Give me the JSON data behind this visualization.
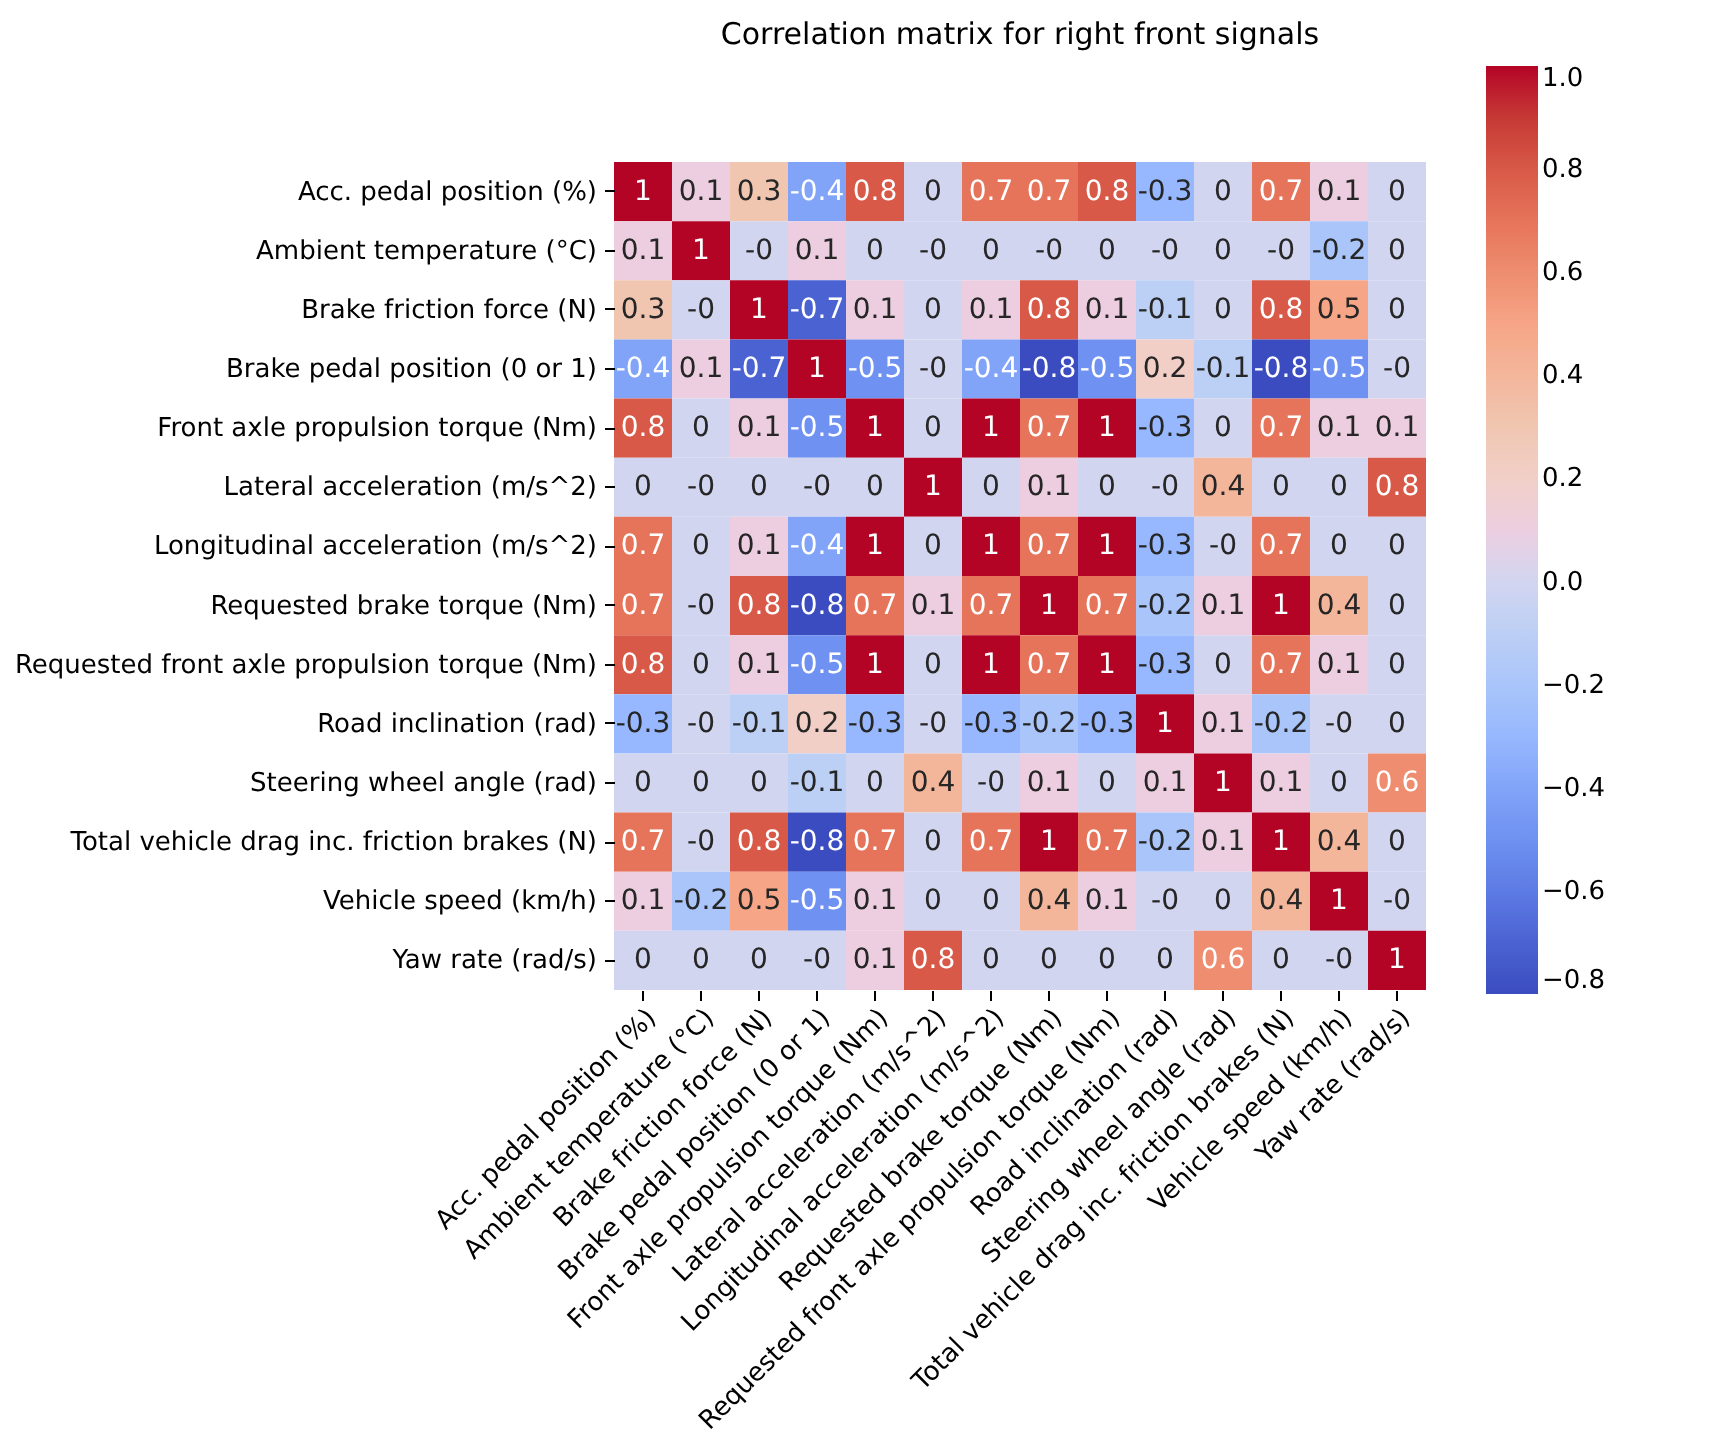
{
  "chart_data": {
    "type": "heatmap",
    "title": "Correlation matrix for right front signals",
    "categories": [
      "Acc. pedal position (%)",
      "Ambient temperature (°C)",
      "Brake friction force (N)",
      "Brake pedal position (0 or 1)",
      "Front axle propulsion torque (Nm)",
      "Lateral acceleration (m/s^2)",
      "Longitudinal acceleration (m/s^2)",
      "Requested brake torque (Nm)",
      "Requested front axle propulsion torque (Nm)",
      "Road inclination (rad)",
      "Steering wheel angle (rad)",
      "Total vehicle drag inc. friction brakes (N)",
      "Vehicle speed (km/h)",
      "Yaw rate (rad/s)"
    ],
    "y_categories": [
      "Acc. pedal position (%)",
      "Ambient temperature (°C)",
      "Brake friction force (N)",
      "Brake pedal position (0 or 1)",
      "Front axle propulsion torque (Nm)",
      "Lateral acceleration (m/s^2)",
      "Longitudinal acceleration (m/s^2)",
      "Requested brake torque (Nm)",
      "Requested front axle propulsion torque (Nm)",
      "Road inclination (rad)",
      "Steering wheel angle (rad)",
      "Total vehicle drag inc. friction brakes (N)",
      "Vehicle speed (km/h)",
      "Yaw rate (rad/s)"
    ],
    "cells": [
      [
        1,
        0.1,
        0.3,
        -0.4,
        0.8,
        0,
        0.7,
        0.7,
        0.8,
        -0.3,
        0,
        0.7,
        0.1,
        0
      ],
      [
        0.1,
        1,
        0,
        0.1,
        0,
        0,
        0,
        0,
        0,
        0,
        0,
        0,
        -0.2,
        0
      ],
      [
        0.3,
        0,
        1,
        -0.7,
        0.1,
        0,
        0.1,
        0.8,
        0.1,
        -0.1,
        0,
        0.8,
        0.5,
        0
      ],
      [
        -0.4,
        0.1,
        -0.7,
        1,
        -0.5,
        0,
        -0.4,
        -0.8,
        -0.5,
        0.2,
        -0.1,
        -0.8,
        -0.5,
        0
      ],
      [
        0.8,
        0,
        0.1,
        -0.5,
        1,
        0,
        1,
        0.7,
        1,
        -0.3,
        0,
        0.7,
        0.1,
        0.1
      ],
      [
        0,
        0,
        0,
        0,
        0,
        1,
        0,
        0.1,
        0,
        0,
        0.4,
        0,
        0,
        0.8
      ],
      [
        0.7,
        0,
        0.1,
        -0.4,
        1,
        0,
        1,
        0.7,
        1,
        -0.3,
        0,
        0.7,
        0,
        0
      ],
      [
        0.7,
        0,
        0.8,
        -0.8,
        0.7,
        0.1,
        0.7,
        1,
        0.7,
        -0.2,
        0.1,
        1,
        0.4,
        0
      ],
      [
        0.8,
        0,
        0.1,
        -0.5,
        1,
        0,
        1,
        0.7,
        1,
        -0.3,
        0,
        0.7,
        0.1,
        0
      ],
      [
        -0.3,
        0,
        -0.1,
        0.2,
        -0.3,
        0,
        -0.3,
        -0.2,
        -0.3,
        1,
        0.1,
        -0.2,
        0,
        0
      ],
      [
        0,
        0,
        0,
        -0.1,
        0,
        0.4,
        0,
        0.1,
        0,
        0.1,
        1,
        0.1,
        0,
        0.6
      ],
      [
        0.7,
        0,
        0.8,
        -0.8,
        0.7,
        0,
        0.7,
        1,
        0.7,
        -0.2,
        0.1,
        1,
        0.4,
        0
      ],
      [
        0.1,
        -0.2,
        0.5,
        -0.5,
        0.1,
        0,
        0,
        0.4,
        0.1,
        0,
        0,
        0.4,
        1,
        0
      ],
      [
        0,
        0,
        0,
        0,
        0.1,
        0.8,
        0,
        0,
        0,
        0,
        0.6,
        0,
        0,
        1
      ]
    ],
    "cell_labels": [
      [
        "1",
        "0.1",
        "0.3",
        "-0.4",
        "0.8",
        "0",
        "0.7",
        "0.7",
        "0.8",
        "-0.3",
        "0",
        "0.7",
        "0.1",
        "0"
      ],
      [
        "0.1",
        "1",
        "-0",
        "0.1",
        "0",
        "-0",
        "0",
        "-0",
        "0",
        "-0",
        "0",
        "-0",
        "-0.2",
        "0"
      ],
      [
        "0.3",
        "-0",
        "1",
        "-0.7",
        "0.1",
        "0",
        "0.1",
        "0.8",
        "0.1",
        "-0.1",
        "0",
        "0.8",
        "0.5",
        "0"
      ],
      [
        "-0.4",
        "0.1",
        "-0.7",
        "1",
        "-0.5",
        "-0",
        "-0.4",
        "-0.8",
        "-0.5",
        "0.2",
        "-0.1",
        "-0.8",
        "-0.5",
        "-0"
      ],
      [
        "0.8",
        "0",
        "0.1",
        "-0.5",
        "1",
        "0",
        "1",
        "0.7",
        "1",
        "-0.3",
        "0",
        "0.7",
        "0.1",
        "0.1"
      ],
      [
        "0",
        "-0",
        "0",
        "-0",
        "0",
        "1",
        "0",
        "0.1",
        "0",
        "-0",
        "0.4",
        "0",
        "0",
        "0.8"
      ],
      [
        "0.7",
        "0",
        "0.1",
        "-0.4",
        "1",
        "0",
        "1",
        "0.7",
        "1",
        "-0.3",
        "-0",
        "0.7",
        "0",
        "0"
      ],
      [
        "0.7",
        "-0",
        "0.8",
        "-0.8",
        "0.7",
        "0.1",
        "0.7",
        "1",
        "0.7",
        "-0.2",
        "0.1",
        "1",
        "0.4",
        "0"
      ],
      [
        "0.8",
        "0",
        "0.1",
        "-0.5",
        "1",
        "0",
        "1",
        "0.7",
        "1",
        "-0.3",
        "0",
        "0.7",
        "0.1",
        "0"
      ],
      [
        "-0.3",
        "-0",
        "-0.1",
        "0.2",
        "-0.3",
        "-0",
        "-0.3",
        "-0.2",
        "-0.3",
        "1",
        "0.1",
        "-0.2",
        "-0",
        "0"
      ],
      [
        "0",
        "0",
        "0",
        "-0.1",
        "0",
        "0.4",
        "-0",
        "0.1",
        "0",
        "0.1",
        "1",
        "0.1",
        "0",
        "0.6"
      ],
      [
        "0.7",
        "-0",
        "0.8",
        "-0.8",
        "0.7",
        "0",
        "0.7",
        "1",
        "0.7",
        "-0.2",
        "0.1",
        "1",
        "0.4",
        "0"
      ],
      [
        "0.1",
        "-0.2",
        "0.5",
        "-0.5",
        "0.1",
        "0",
        "0",
        "0.4",
        "0.1",
        "-0",
        "0",
        "0.4",
        "1",
        "-0"
      ],
      [
        "0",
        "0",
        "0",
        "-0",
        "0.1",
        "0.8",
        "0",
        "0",
        "0",
        "0",
        "0.6",
        "0",
        "-0",
        "1"
      ]
    ],
    "clim": [
      -0.8,
      1
    ],
    "cticks": [
      -0.8,
      -0.6,
      -0.4,
      -0.2,
      {
        "value": 0,
        "label": "0.0"
      },
      0.2,
      0.4,
      0.6,
      0.8,
      {
        "value": 1,
        "label": "1.0"
      }
    ]
  }
}
